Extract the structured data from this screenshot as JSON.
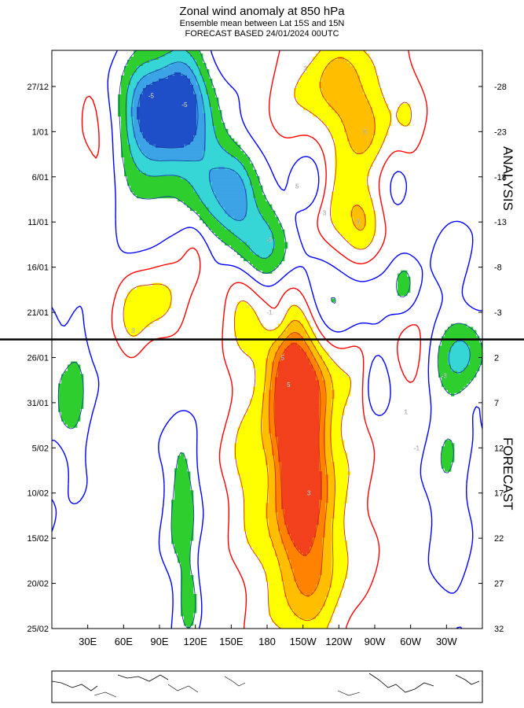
{
  "chart_data": {
    "type": "heatmap",
    "title": "Zonal wind anomaly at 850 hPa",
    "subtitle_1": "Ensemble mean between  Lat 15S and 15N",
    "subtitle_2": "FORECAST  BASED 24/01/2024 00UTC",
    "x_ticks": [
      "30E",
      "60E",
      "90E",
      "120E",
      "150E",
      "180",
      "150W",
      "120W",
      "90W",
      "60W",
      "30W"
    ],
    "x_tick_lon": [
      30,
      60,
      90,
      120,
      150,
      180,
      210,
      240,
      270,
      300,
      330
    ],
    "x_range_lon": [
      0,
      360
    ],
    "y_ticks_left": [
      "27/12",
      "1/01",
      "6/01",
      "11/01",
      "16/01",
      "21/01",
      "26/01",
      "31/01",
      "5/02",
      "10/02",
      "15/02",
      "20/02",
      "25/02"
    ],
    "y_ticks_right": [
      "-28",
      "-23",
      "-18",
      "-13",
      "-8",
      "-3",
      "2",
      "7",
      "12",
      "17",
      "22",
      "27",
      "32"
    ],
    "y_range_days": [
      -32,
      32
    ],
    "analysis_forecast_boundary_day": 0,
    "section_labels": {
      "upper": "ANALYSIS",
      "lower": "FORECAST"
    },
    "contour_labels": [
      {
        "text": "3",
        "lon": 212,
        "day": -30
      },
      {
        "text": "5",
        "lon": 262,
        "day": -23
      },
      {
        "text": "-5",
        "lon": 83,
        "day": -27
      },
      {
        "text": "-5",
        "lon": 111,
        "day": -26
      },
      {
        "text": "5",
        "lon": 205,
        "day": -17
      },
      {
        "text": "3",
        "lon": 228,
        "day": -14
      },
      {
        "text": "3",
        "lon": 256,
        "day": -13
      },
      {
        "text": "-5",
        "lon": 182,
        "day": -11
      },
      {
        "text": "-1",
        "lon": 182,
        "day": -3
      },
      {
        "text": "3",
        "lon": 68,
        "day": -1
      },
      {
        "text": "5",
        "lon": 193,
        "day": 2
      },
      {
        "text": "5",
        "lon": 198,
        "day": 5
      },
      {
        "text": "3",
        "lon": 215,
        "day": 17
      },
      {
        "text": "1",
        "lon": 296,
        "day": 8
      },
      {
        "text": "-1",
        "lon": 305,
        "day": 12
      },
      {
        "text": "-3",
        "lon": 328,
        "day": 4
      }
    ],
    "levels": [
      -9,
      -7,
      -5,
      -3,
      -1,
      1,
      3,
      5,
      7,
      9
    ],
    "colors": {
      "neg_9": "#1e4fc8",
      "neg_7": "#3ba3e6",
      "neg_5": "#37d6d6",
      "neg_3": "#2fce2f",
      "pos_3": "#ffff00",
      "pos_5": "#ffbf00",
      "pos_7": "#ff8200",
      "pos_9": "#f2411c",
      "neg_line": "#0000ff",
      "pos_line": "#ff0000"
    }
  }
}
